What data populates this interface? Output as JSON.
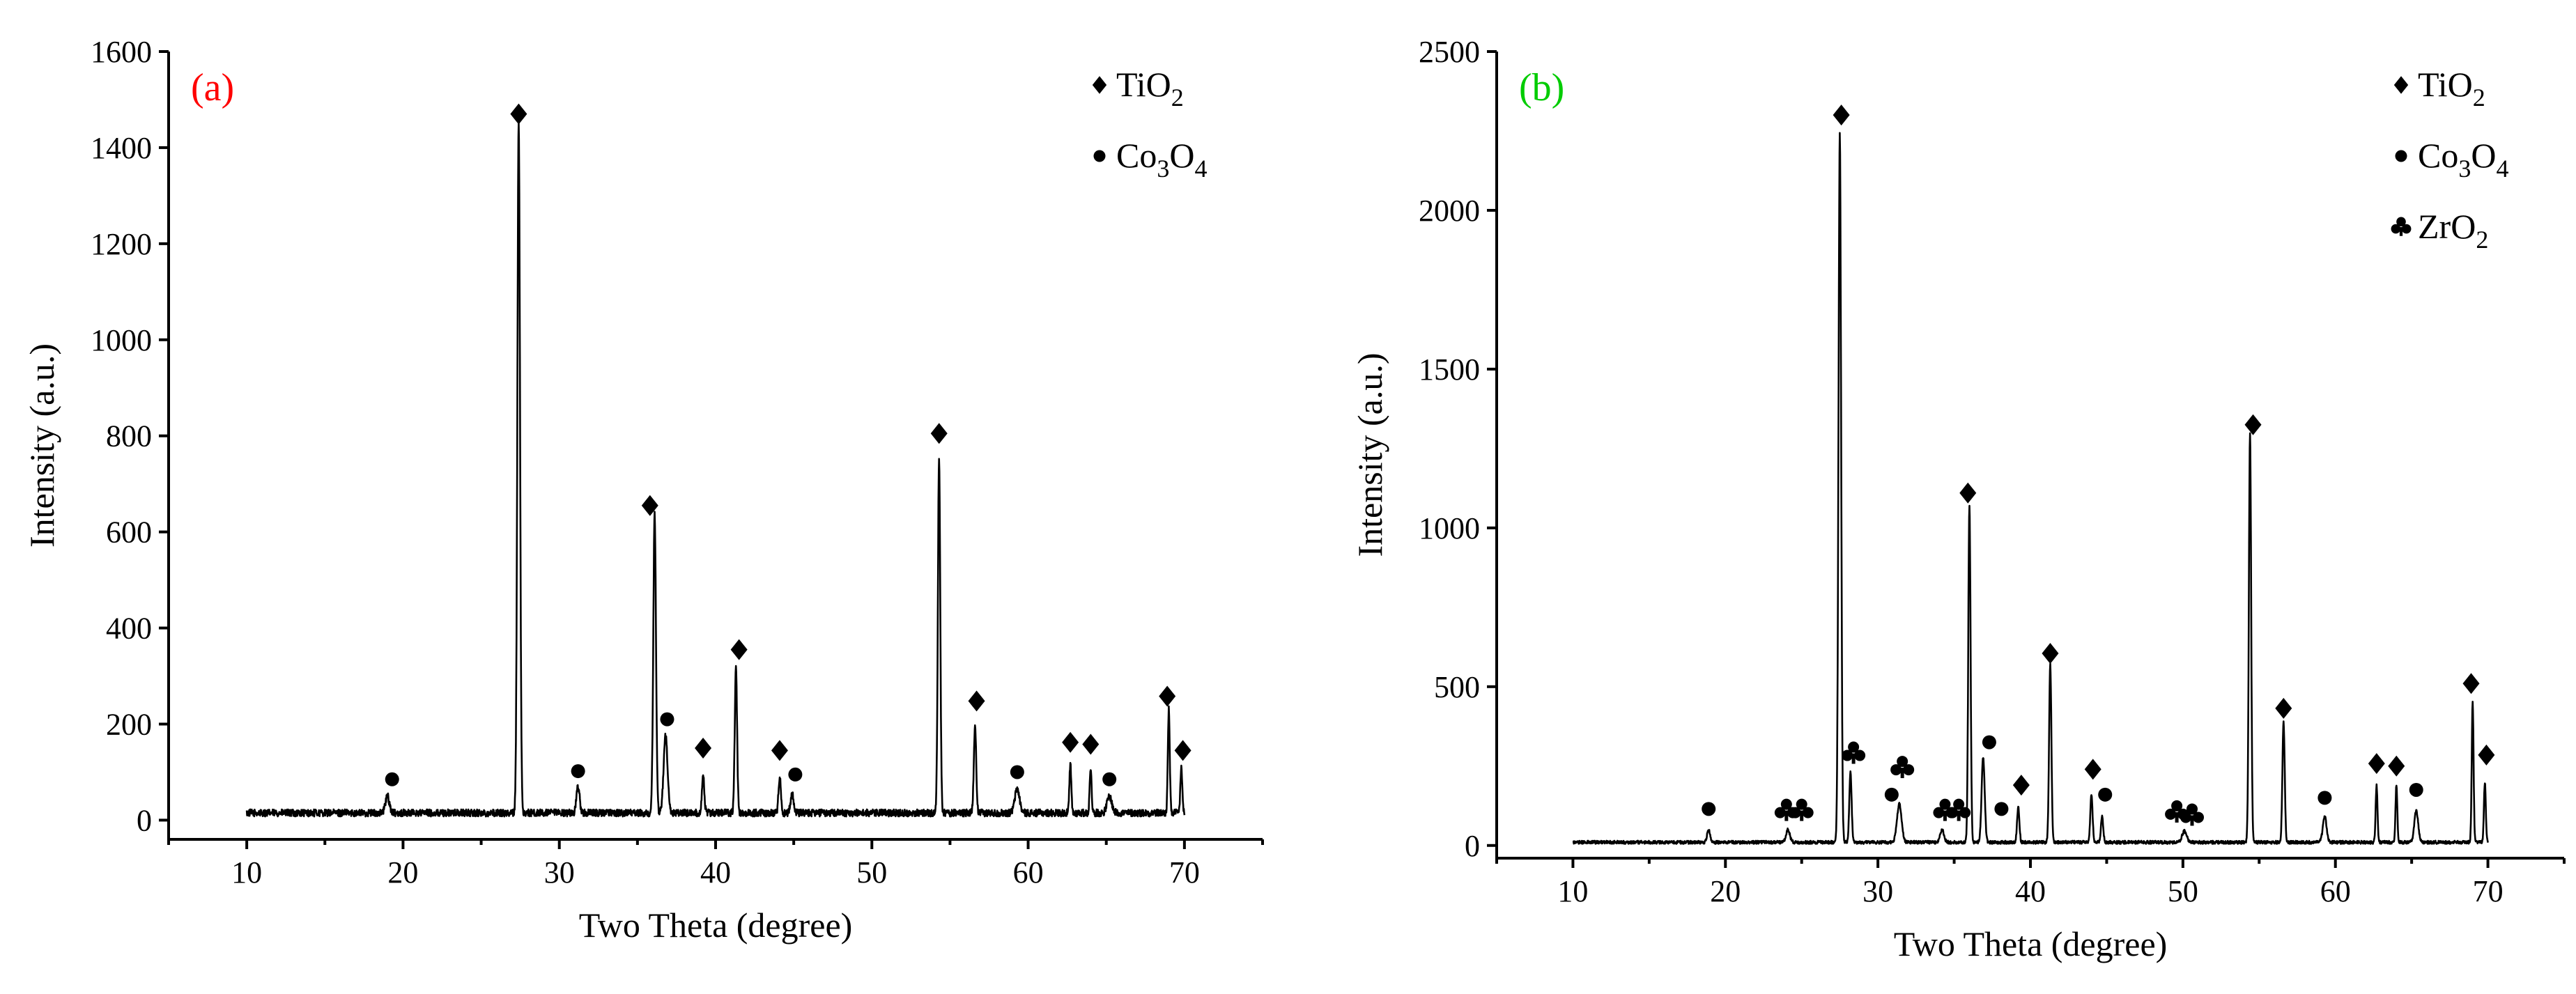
{
  "chart_data": [
    {
      "type": "line",
      "panel_label": "(a)",
      "panel_label_color": "#ff0000",
      "xlabel": "Two Theta (degree)",
      "ylabel": "Intensity (a.u.)",
      "xlim": [
        5,
        75
      ],
      "ylim": [
        -40,
        1600
      ],
      "xticks": [
        10,
        20,
        30,
        40,
        50,
        60,
        70
      ],
      "yticks": [
        0,
        200,
        400,
        600,
        800,
        1000,
        1200,
        1400,
        1600
      ],
      "baseline": 15,
      "x_start": 10,
      "x_end": 70,
      "legend_position": "top-right",
      "legend": [
        {
          "marker": "diamond",
          "base": "TiO",
          "sub": "2"
        },
        {
          "marker": "circle",
          "base": "Co",
          "sub": "3",
          "mid": "O",
          "sub2": "4"
        }
      ],
      "peaks": [
        {
          "x": 19.0,
          "y": 35,
          "w": 0.25
        },
        {
          "x": 27.4,
          "y": 1440,
          "w": 0.17
        },
        {
          "x": 31.2,
          "y": 55,
          "w": 0.2
        },
        {
          "x": 36.1,
          "y": 620,
          "w": 0.17
        },
        {
          "x": 36.8,
          "y": 160,
          "w": 0.25
        },
        {
          "x": 39.2,
          "y": 80,
          "w": 0.15
        },
        {
          "x": 41.3,
          "y": 300,
          "w": 0.15
        },
        {
          "x": 44.1,
          "y": 75,
          "w": 0.15
        },
        {
          "x": 44.9,
          "y": 40,
          "w": 0.2
        },
        {
          "x": 54.3,
          "y": 740,
          "w": 0.15
        },
        {
          "x": 56.6,
          "y": 180,
          "w": 0.15
        },
        {
          "x": 59.3,
          "y": 50,
          "w": 0.3
        },
        {
          "x": 62.7,
          "y": 100,
          "w": 0.12
        },
        {
          "x": 64.0,
          "y": 95,
          "w": 0.12
        },
        {
          "x": 65.2,
          "y": 35,
          "w": 0.3
        },
        {
          "x": 69.0,
          "y": 215,
          "w": 0.12
        },
        {
          "x": 69.8,
          "y": 95,
          "w": 0.12
        }
      ],
      "markers": [
        {
          "type": "circle",
          "x": 19.3,
          "y": 85
        },
        {
          "type": "diamond",
          "x": 27.4,
          "y": 1470
        },
        {
          "type": "circle",
          "x": 31.2,
          "y": 102
        },
        {
          "type": "diamond",
          "x": 35.8,
          "y": 655
        },
        {
          "type": "circle",
          "x": 36.9,
          "y": 210
        },
        {
          "type": "diamond",
          "x": 39.2,
          "y": 150
        },
        {
          "type": "diamond",
          "x": 41.5,
          "y": 355
        },
        {
          "type": "diamond",
          "x": 44.1,
          "y": 145
        },
        {
          "type": "circle",
          "x": 45.1,
          "y": 95
        },
        {
          "type": "diamond",
          "x": 54.3,
          "y": 805
        },
        {
          "type": "diamond",
          "x": 56.7,
          "y": 248
        },
        {
          "type": "circle",
          "x": 59.3,
          "y": 100
        },
        {
          "type": "diamond",
          "x": 62.7,
          "y": 162
        },
        {
          "type": "diamond",
          "x": 64.0,
          "y": 158
        },
        {
          "type": "circle",
          "x": 65.2,
          "y": 85
        },
        {
          "type": "diamond",
          "x": 68.9,
          "y": 258
        },
        {
          "type": "diamond",
          "x": 69.9,
          "y": 145
        }
      ]
    },
    {
      "type": "line",
      "panel_label": "(b)",
      "panel_label_color": "#00cc00",
      "xlabel": "Two Theta (degree)",
      "ylabel": "Intensity (a.u.)",
      "xlim": [
        5,
        75
      ],
      "ylim": [
        -40,
        2500
      ],
      "xticks": [
        10,
        20,
        30,
        40,
        50,
        60,
        70
      ],
      "yticks": [
        0,
        500,
        1000,
        1500,
        2000,
        2500
      ],
      "baseline": 10,
      "x_start": 10,
      "x_end": 70,
      "legend_position": "top-right",
      "legend": [
        {
          "marker": "diamond",
          "base": "TiO",
          "sub": "2"
        },
        {
          "marker": "circle",
          "base": "Co",
          "sub": "3",
          "mid": "O",
          "sub2": "4"
        },
        {
          "marker": "club",
          "base": "ZrO",
          "sub": "2"
        }
      ],
      "peaks": [
        {
          "x": 18.9,
          "y": 40,
          "w": 0.2
        },
        {
          "x": 24.1,
          "y": 40,
          "w": 0.25
        },
        {
          "x": 27.5,
          "y": 2230,
          "w": 0.17
        },
        {
          "x": 28.2,
          "y": 220,
          "w": 0.15
        },
        {
          "x": 31.4,
          "y": 120,
          "w": 0.3
        },
        {
          "x": 34.2,
          "y": 40,
          "w": 0.25
        },
        {
          "x": 36.0,
          "y": 1060,
          "w": 0.15
        },
        {
          "x": 36.9,
          "y": 270,
          "w": 0.2
        },
        {
          "x": 39.2,
          "y": 110,
          "w": 0.15
        },
        {
          "x": 41.3,
          "y": 560,
          "w": 0.15
        },
        {
          "x": 44.0,
          "y": 150,
          "w": 0.15
        },
        {
          "x": 44.7,
          "y": 80,
          "w": 0.15
        },
        {
          "x": 50.1,
          "y": 35,
          "w": 0.3
        },
        {
          "x": 54.4,
          "y": 1290,
          "w": 0.15
        },
        {
          "x": 56.6,
          "y": 380,
          "w": 0.15
        },
        {
          "x": 59.3,
          "y": 80,
          "w": 0.25
        },
        {
          "x": 62.7,
          "y": 180,
          "w": 0.12
        },
        {
          "x": 64.0,
          "y": 180,
          "w": 0.12
        },
        {
          "x": 65.3,
          "y": 100,
          "w": 0.25
        },
        {
          "x": 69.0,
          "y": 440,
          "w": 0.12
        },
        {
          "x": 69.8,
          "y": 190,
          "w": 0.12
        }
      ],
      "markers": [
        {
          "type": "circle",
          "x": 18.9,
          "y": 115
        },
        {
          "type": "club",
          "x": 24.0,
          "y": 110
        },
        {
          "type": "club",
          "x": 25.0,
          "y": 110
        },
        {
          "type": "diamond",
          "x": 27.6,
          "y": 2300
        },
        {
          "type": "club",
          "x": 28.4,
          "y": 290
        },
        {
          "type": "circle",
          "x": 30.9,
          "y": 160
        },
        {
          "type": "club",
          "x": 31.6,
          "y": 245
        },
        {
          "type": "club",
          "x": 34.4,
          "y": 110
        },
        {
          "type": "club",
          "x": 35.3,
          "y": 110
        },
        {
          "type": "diamond",
          "x": 35.9,
          "y": 1110
        },
        {
          "type": "circle",
          "x": 37.3,
          "y": 325
        },
        {
          "type": "circle",
          "x": 38.1,
          "y": 115
        },
        {
          "type": "diamond",
          "x": 39.4,
          "y": 190
        },
        {
          "type": "diamond",
          "x": 41.3,
          "y": 605
        },
        {
          "type": "diamond",
          "x": 44.1,
          "y": 240
        },
        {
          "type": "circle",
          "x": 44.9,
          "y": 160
        },
        {
          "type": "club",
          "x": 49.6,
          "y": 105
        },
        {
          "type": "club",
          "x": 50.6,
          "y": 95
        },
        {
          "type": "diamond",
          "x": 54.6,
          "y": 1325
        },
        {
          "type": "diamond",
          "x": 56.6,
          "y": 432
        },
        {
          "type": "circle",
          "x": 59.3,
          "y": 150
        },
        {
          "type": "diamond",
          "x": 62.7,
          "y": 258
        },
        {
          "type": "diamond",
          "x": 64.0,
          "y": 250
        },
        {
          "type": "circle",
          "x": 65.3,
          "y": 175
        },
        {
          "type": "diamond",
          "x": 68.9,
          "y": 510
        },
        {
          "type": "diamond",
          "x": 69.9,
          "y": 285
        }
      ]
    }
  ]
}
